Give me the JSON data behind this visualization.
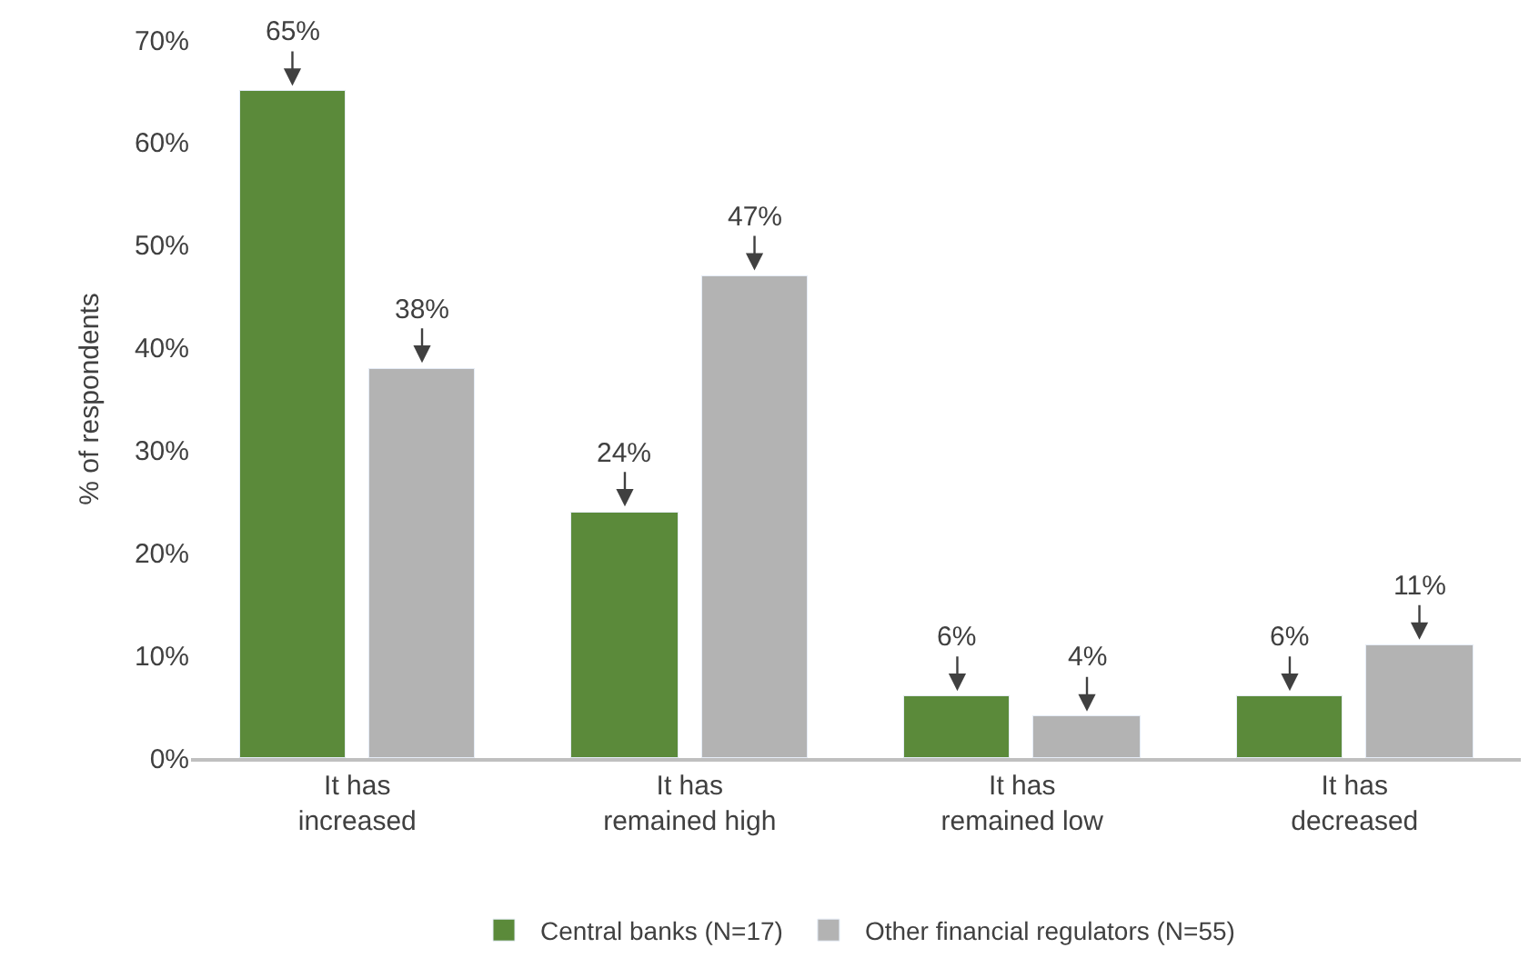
{
  "chart_data": {
    "type": "bar",
    "ylabel": "% of respondents",
    "categories": [
      "It has\nincreased",
      "It has\nremained high",
      "It has\nremained low",
      "It has\ndecreased"
    ],
    "series": [
      {
        "name": "Central banks (N=17)",
        "color": "#5b8a3a",
        "values": [
          65,
          24,
          6,
          6
        ],
        "value_labels": [
          "65%",
          "24%",
          "6%",
          "6%"
        ]
      },
      {
        "name": "Other financial regulators (N=55)",
        "color": "#b3b3b3",
        "values": [
          38,
          47,
          4,
          11
        ],
        "value_labels": [
          "38%",
          "47%",
          "4%",
          "11%"
        ]
      }
    ],
    "ylim": [
      0,
      70
    ],
    "yticks": [
      {
        "value": 0,
        "label": "0%"
      },
      {
        "value": 10,
        "label": "10%"
      },
      {
        "value": 20,
        "label": "20%"
      },
      {
        "value": 30,
        "label": "30%"
      },
      {
        "value": 40,
        "label": "40%"
      },
      {
        "value": 50,
        "label": "50%"
      },
      {
        "value": 60,
        "label": "60%"
      },
      {
        "value": 70,
        "label": "70%"
      }
    ],
    "legend": "bottom"
  }
}
